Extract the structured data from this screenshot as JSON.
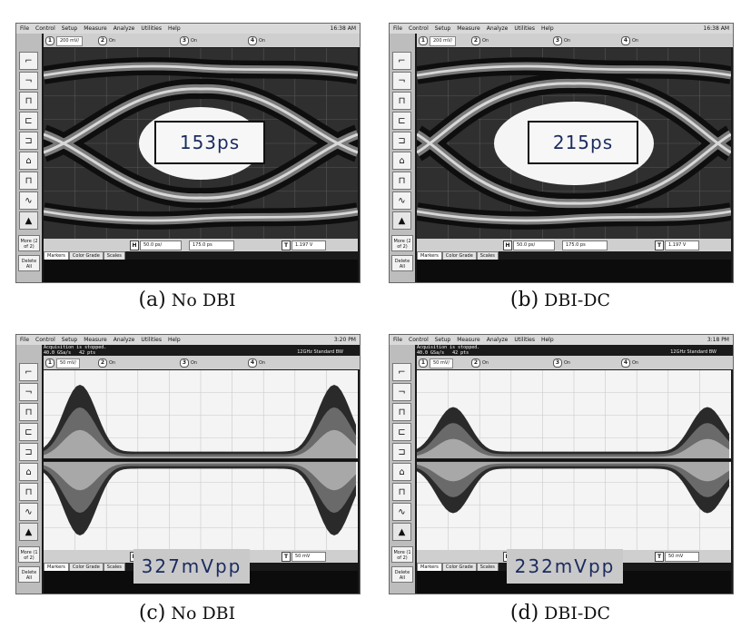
{
  "panels": [
    {
      "id": "a",
      "menu": [
        "File",
        "Control",
        "Setup",
        "Measure",
        "Analyze",
        "Utilities",
        "Help"
      ],
      "clock": "16:38 AM",
      "status": "",
      "bandwidth": "",
      "ch1_scale": "200 mV/",
      "channels": [
        "1",
        "2",
        "3",
        "4"
      ],
      "on_label": "On",
      "h_label": "H",
      "h_scale": "50.0 ps/",
      "delay": "175.0 ps",
      "t_label": "T",
      "trigger": "1.197 V",
      "tabs": [
        "Markers",
        "Color Grade",
        "Scales"
      ],
      "more": "More (2 of 2)",
      "delete": "Delete All",
      "overlay": "153ps",
      "caption_letter": "(a)",
      "caption_text": "No DBI"
    },
    {
      "id": "b",
      "menu": [
        "File",
        "Control",
        "Setup",
        "Measure",
        "Analyze",
        "Utilities",
        "Help"
      ],
      "clock": "16:38 AM",
      "status": "",
      "bandwidth": "",
      "ch1_scale": "200 mV/",
      "channels": [
        "1",
        "2",
        "3",
        "4"
      ],
      "on_label": "On",
      "h_label": "H",
      "h_scale": "50.0 ps/",
      "delay": "175.0 ps",
      "t_label": "T",
      "trigger": "1.197 V",
      "tabs": [
        "Markers",
        "Color Grade",
        "Scales"
      ],
      "more": "More (2 of 2)",
      "delete": "Delete All",
      "overlay": "215ps",
      "caption_letter": "(b)",
      "caption_text": "DBI-DC"
    },
    {
      "id": "c",
      "menu": [
        "File",
        "Control",
        "Setup",
        "Measure",
        "Analyze",
        "Utilities",
        "Help"
      ],
      "clock": "3:20 PM",
      "status": "Acquisition is stopped.\n40.0 GSa/s   42 pts",
      "bandwidth": "12GHz Standard BW",
      "ch1_scale": "50 mV/",
      "channels": [
        "1",
        "2",
        "3",
        "4"
      ],
      "on_label": "On",
      "h_label": "H",
      "h_scale": "100 ps/",
      "delay": "50.0 ps",
      "t_label": "T",
      "trigger": "50 mV",
      "tabs": [
        "Markers",
        "Color Grade",
        "Scales"
      ],
      "more": "More (1 of 2)",
      "delete": "Delete All",
      "overlay": "327mVpp",
      "caption_letter": "(c)",
      "caption_text": "No DBI"
    },
    {
      "id": "d",
      "menu": [
        "File",
        "Control",
        "Setup",
        "Measure",
        "Analyze",
        "Utilities",
        "Help"
      ],
      "clock": "3:18 PM",
      "status": "Acquisition is stopped.\n40.0 GSa/s   42 pts",
      "bandwidth": "12GHz Standard BW",
      "ch1_scale": "50 mV/",
      "channels": [
        "1",
        "2",
        "3",
        "4"
      ],
      "on_label": "On",
      "h_label": "H",
      "h_scale": "100 ps/",
      "delay": "50.0 ps",
      "t_label": "T",
      "trigger": "50 mV",
      "tabs": [
        "Markers",
        "Color Grade",
        "Scales"
      ],
      "more": "More (1 of 2)",
      "delete": "Delete All",
      "overlay": "232mVpp",
      "caption_letter": "(d)",
      "caption_text": "DBI-DC"
    }
  ],
  "colors": {
    "overlay_text": "#1b2b5e",
    "trace_dark": "#111111",
    "trace_gray": "#8a8a8a",
    "screen_bg_eye": "#2f2f2f",
    "screen_bg_ripple": "#f4f4f4"
  },
  "icons": [
    "rising-edge-icon",
    "falling-edge-icon",
    "pulse-icon",
    "timing-icon",
    "setup-hold-icon",
    "glitch-icon",
    "runt-icon",
    "sine-icon",
    "delete-icon"
  ]
}
